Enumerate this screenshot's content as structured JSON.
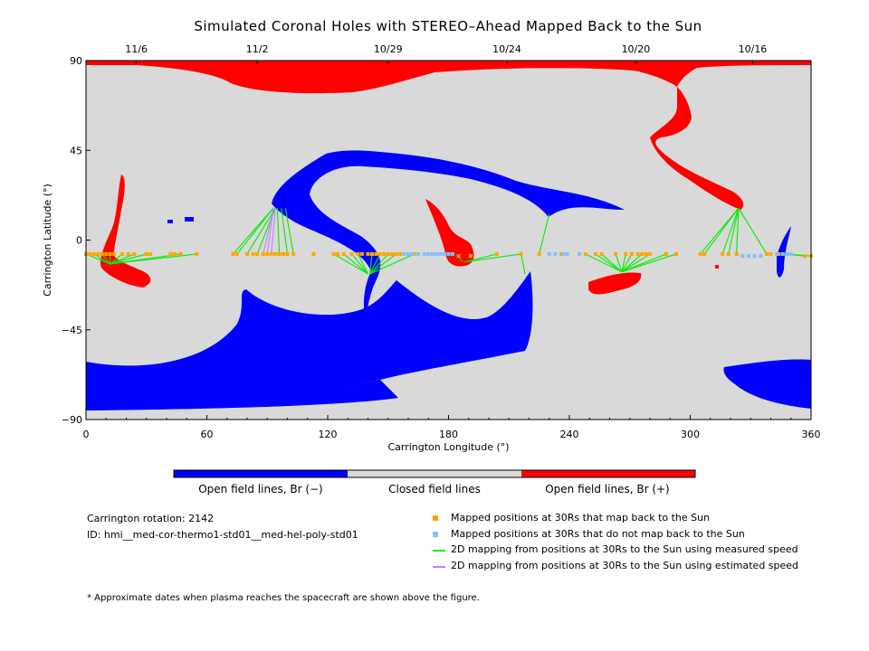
{
  "title": "Simulated Coronal Holes with STEREO–Ahead Mapped Back to the Sun",
  "chart_data": {
    "type": "scatter",
    "title": "Simulated Coronal Holes with STEREO–Ahead Mapped Back to the Sun",
    "xlabel": "Carrington Longitude (°)",
    "ylabel": "Carrington Latitude (°)",
    "xlim": [
      0,
      360
    ],
    "ylim": [
      -90,
      90
    ],
    "x_ticks": [
      "0",
      "60",
      "120",
      "180",
      "240",
      "300",
      "360"
    ],
    "y_ticks": [
      "90",
      "45",
      "0",
      "−45",
      "−90"
    ],
    "top_axis_dates": [
      {
        "label": "11/6",
        "lon": 25
      },
      {
        "label": "11/2",
        "lon": 85
      },
      {
        "label": "10/29",
        "lon": 150
      },
      {
        "label": "10/24",
        "lon": 209
      },
      {
        "label": "10/20",
        "lon": 273
      },
      {
        "label": "10/16",
        "lon": 331
      }
    ],
    "colors": {
      "open_negative": "#0000ff",
      "closed": "#d9d9d9",
      "open_positive": "#ff0000",
      "mapped": "#ffa500",
      "unmapped": "#80c0ff",
      "measured_line": "#00ee00",
      "estimated_line": "#c080ff"
    },
    "series": [
      {
        "name": "Mapped positions at 30Rs that map back to the Sun",
        "points": [
          [
            0,
            -7
          ],
          [
            2,
            -7
          ],
          [
            4,
            -7
          ],
          [
            6,
            -7
          ],
          [
            8,
            -7
          ],
          [
            10,
            -7
          ],
          [
            12,
            -7
          ],
          [
            14,
            -7
          ],
          [
            18,
            -7
          ],
          [
            21,
            -7
          ],
          [
            24,
            -7
          ],
          [
            30,
            -7
          ],
          [
            32,
            -7
          ],
          [
            42,
            -7
          ],
          [
            44,
            -7
          ],
          [
            47,
            -7
          ],
          [
            55,
            -7
          ],
          [
            73,
            -7
          ],
          [
            75,
            -7
          ],
          [
            80,
            -7
          ],
          [
            83,
            -7
          ],
          [
            85,
            -7
          ],
          [
            88,
            -7
          ],
          [
            90,
            -7
          ],
          [
            92,
            -7
          ],
          [
            94,
            -7
          ],
          [
            96,
            -7
          ],
          [
            98,
            -7
          ],
          [
            100,
            -7
          ],
          [
            103,
            -7
          ],
          [
            113,
            -7
          ],
          [
            123,
            -7
          ],
          [
            125,
            -7
          ],
          [
            128,
            -7
          ],
          [
            132,
            -7
          ],
          [
            135,
            -7
          ],
          [
            137,
            -7
          ],
          [
            140,
            -7
          ],
          [
            142,
            -7
          ],
          [
            144,
            -7
          ],
          [
            146,
            -7
          ],
          [
            148,
            -7
          ],
          [
            150,
            -7
          ],
          [
            152,
            -7
          ],
          [
            154,
            -7
          ],
          [
            156,
            -7
          ],
          [
            163,
            -7
          ],
          [
            185,
            -8
          ],
          [
            191,
            -8
          ],
          [
            204,
            -7
          ],
          [
            216,
            -7
          ],
          [
            225,
            -7
          ],
          [
            236,
            -7
          ],
          [
            248,
            -7
          ],
          [
            253,
            -7
          ],
          [
            256,
            -7
          ],
          [
            263,
            -7
          ],
          [
            268,
            -7
          ],
          [
            271,
            -7
          ],
          [
            274,
            -7
          ],
          [
            276,
            -7
          ],
          [
            278,
            -7
          ],
          [
            280,
            -7
          ],
          [
            288,
            -7
          ],
          [
            293,
            -7
          ],
          [
            305,
            -7
          ],
          [
            307,
            -7
          ],
          [
            316,
            -7
          ],
          [
            319,
            -7
          ],
          [
            323,
            -7
          ],
          [
            338,
            -7
          ],
          [
            340,
            -7
          ],
          [
            344,
            -7
          ],
          [
            357,
            -8
          ],
          [
            360,
            -8
          ]
        ]
      },
      {
        "name": "Mapped positions at 30Rs that do not map back to the Sun",
        "points": [
          [
            158,
            -7
          ],
          [
            160,
            -7
          ],
          [
            162,
            -7
          ],
          [
            165,
            -7
          ],
          [
            168,
            -7
          ],
          [
            170,
            -7
          ],
          [
            172,
            -7
          ],
          [
            174,
            -7
          ],
          [
            176,
            -7
          ],
          [
            178,
            -7
          ],
          [
            180,
            -7
          ],
          [
            182,
            -7
          ],
          [
            230,
            -7
          ],
          [
            233,
            -7
          ],
          [
            237,
            -7
          ],
          [
            239,
            -7
          ],
          [
            245,
            -7
          ],
          [
            326,
            -8
          ],
          [
            329,
            -8
          ],
          [
            332,
            -8
          ],
          [
            335,
            -8
          ],
          [
            343,
            -7
          ],
          [
            346,
            -7
          ],
          [
            348,
            -7
          ],
          [
            350,
            -7
          ]
        ]
      }
    ],
    "mapping_lines_measured": [
      [
        [
          0,
          -7
        ],
        [
          12,
          -12
        ]
      ],
      [
        [
          4,
          -7
        ],
        [
          12,
          -12
        ]
      ],
      [
        [
          8,
          -7
        ],
        [
          12,
          -12
        ]
      ],
      [
        [
          12,
          -7
        ],
        [
          12,
          -12
        ]
      ],
      [
        [
          18,
          -7
        ],
        [
          12,
          -12
        ]
      ],
      [
        [
          24,
          -7
        ],
        [
          12,
          -12
        ]
      ],
      [
        [
          30,
          -7
        ],
        [
          12,
          -12
        ]
      ],
      [
        [
          47,
          -7
        ],
        [
          12,
          -12
        ]
      ],
      [
        [
          55,
          -7
        ],
        [
          12,
          -12
        ]
      ],
      [
        [
          73,
          -7
        ],
        [
          93,
          16
        ]
      ],
      [
        [
          75,
          -7
        ],
        [
          93,
          16
        ]
      ],
      [
        [
          80,
          -7
        ],
        [
          94,
          16
        ]
      ],
      [
        [
          85,
          -7
        ],
        [
          94,
          16
        ]
      ],
      [
        [
          96,
          -7
        ],
        [
          95,
          16
        ]
      ],
      [
        [
          100,
          -7
        ],
        [
          97,
          16
        ]
      ],
      [
        [
          103,
          -7
        ],
        [
          99,
          16
        ]
      ],
      [
        [
          123,
          -7
        ],
        [
          140,
          -17
        ]
      ],
      [
        [
          128,
          -7
        ],
        [
          140,
          -17
        ]
      ],
      [
        [
          132,
          -7
        ],
        [
          140,
          -17
        ]
      ],
      [
        [
          135,
          -7
        ],
        [
          140,
          -17
        ]
      ],
      [
        [
          142,
          -7
        ],
        [
          141,
          -17
        ]
      ],
      [
        [
          146,
          -7
        ],
        [
          141,
          -17
        ]
      ],
      [
        [
          150,
          -7
        ],
        [
          141,
          -17
        ]
      ],
      [
        [
          154,
          -7
        ],
        [
          141,
          -17
        ]
      ],
      [
        [
          163,
          -7
        ],
        [
          141,
          -17
        ]
      ],
      [
        [
          185,
          -8
        ],
        [
          187,
          -11
        ]
      ],
      [
        [
          204,
          -7
        ],
        [
          188,
          -11
        ]
      ],
      [
        [
          216,
          -7
        ],
        [
          188,
          -11
        ]
      ],
      [
        [
          216,
          -7
        ],
        [
          218,
          -17
        ]
      ],
      [
        [
          225,
          -7
        ],
        [
          230,
          13
        ]
      ],
      [
        [
          248,
          -7
        ],
        [
          266,
          -16
        ]
      ],
      [
        [
          253,
          -7
        ],
        [
          266,
          -16
        ]
      ],
      [
        [
          256,
          -7
        ],
        [
          266,
          -16
        ]
      ],
      [
        [
          263,
          -7
        ],
        [
          266,
          -16
        ]
      ],
      [
        [
          268,
          -7
        ],
        [
          266,
          -16
        ]
      ],
      [
        [
          271,
          -7
        ],
        [
          266,
          -16
        ]
      ],
      [
        [
          276,
          -7
        ],
        [
          266,
          -16
        ]
      ],
      [
        [
          280,
          -7
        ],
        [
          266,
          -16
        ]
      ],
      [
        [
          288,
          -7
        ],
        [
          266,
          -16
        ]
      ],
      [
        [
          293,
          -7
        ],
        [
          266,
          -16
        ]
      ],
      [
        [
          305,
          -7
        ],
        [
          324,
          16
        ]
      ],
      [
        [
          307,
          -7
        ],
        [
          324,
          16
        ]
      ],
      [
        [
          316,
          -7
        ],
        [
          324,
          16
        ]
      ],
      [
        [
          319,
          -7
        ],
        [
          324,
          16
        ]
      ],
      [
        [
          323,
          -7
        ],
        [
          324,
          16
        ]
      ],
      [
        [
          338,
          -7
        ],
        [
          324,
          16
        ]
      ],
      [
        [
          357,
          -8
        ],
        [
          347,
          -7
        ]
      ],
      [
        [
          360,
          -8
        ],
        [
          347,
          -7
        ]
      ]
    ],
    "mapping_lines_estimated": [
      [
        [
          88,
          -7
        ],
        [
          93,
          16
        ]
      ],
      [
        [
          90,
          -7
        ],
        [
          93,
          16
        ]
      ],
      [
        [
          92,
          -7
        ],
        [
          94,
          16
        ]
      ]
    ],
    "colorbar": [
      {
        "label": "Open field lines, Br (−)",
        "color": "#0000ff"
      },
      {
        "label": "Closed field lines",
        "color": "#d9d9d9"
      },
      {
        "label": "Open field lines, Br (+)",
        "color": "#ff0000"
      }
    ]
  },
  "info": {
    "rotation": "Carrington rotation: 2142",
    "id": "ID: hmi__med-cor-thermo1-std01__med-hel-poly-std01"
  },
  "legend": {
    "mapped": "Mapped positions at 30Rs that map back to the Sun",
    "unmapped": "Mapped positions at 30Rs that do not map back to the Sun",
    "measured": "2D mapping from positions at 30Rs to the Sun using measured speed",
    "estimated": "2D mapping from positions at 30Rs to the Sun using estimated speed"
  },
  "footnote": "* Approximate dates when plasma reaches the spacecraft are shown above the figure."
}
